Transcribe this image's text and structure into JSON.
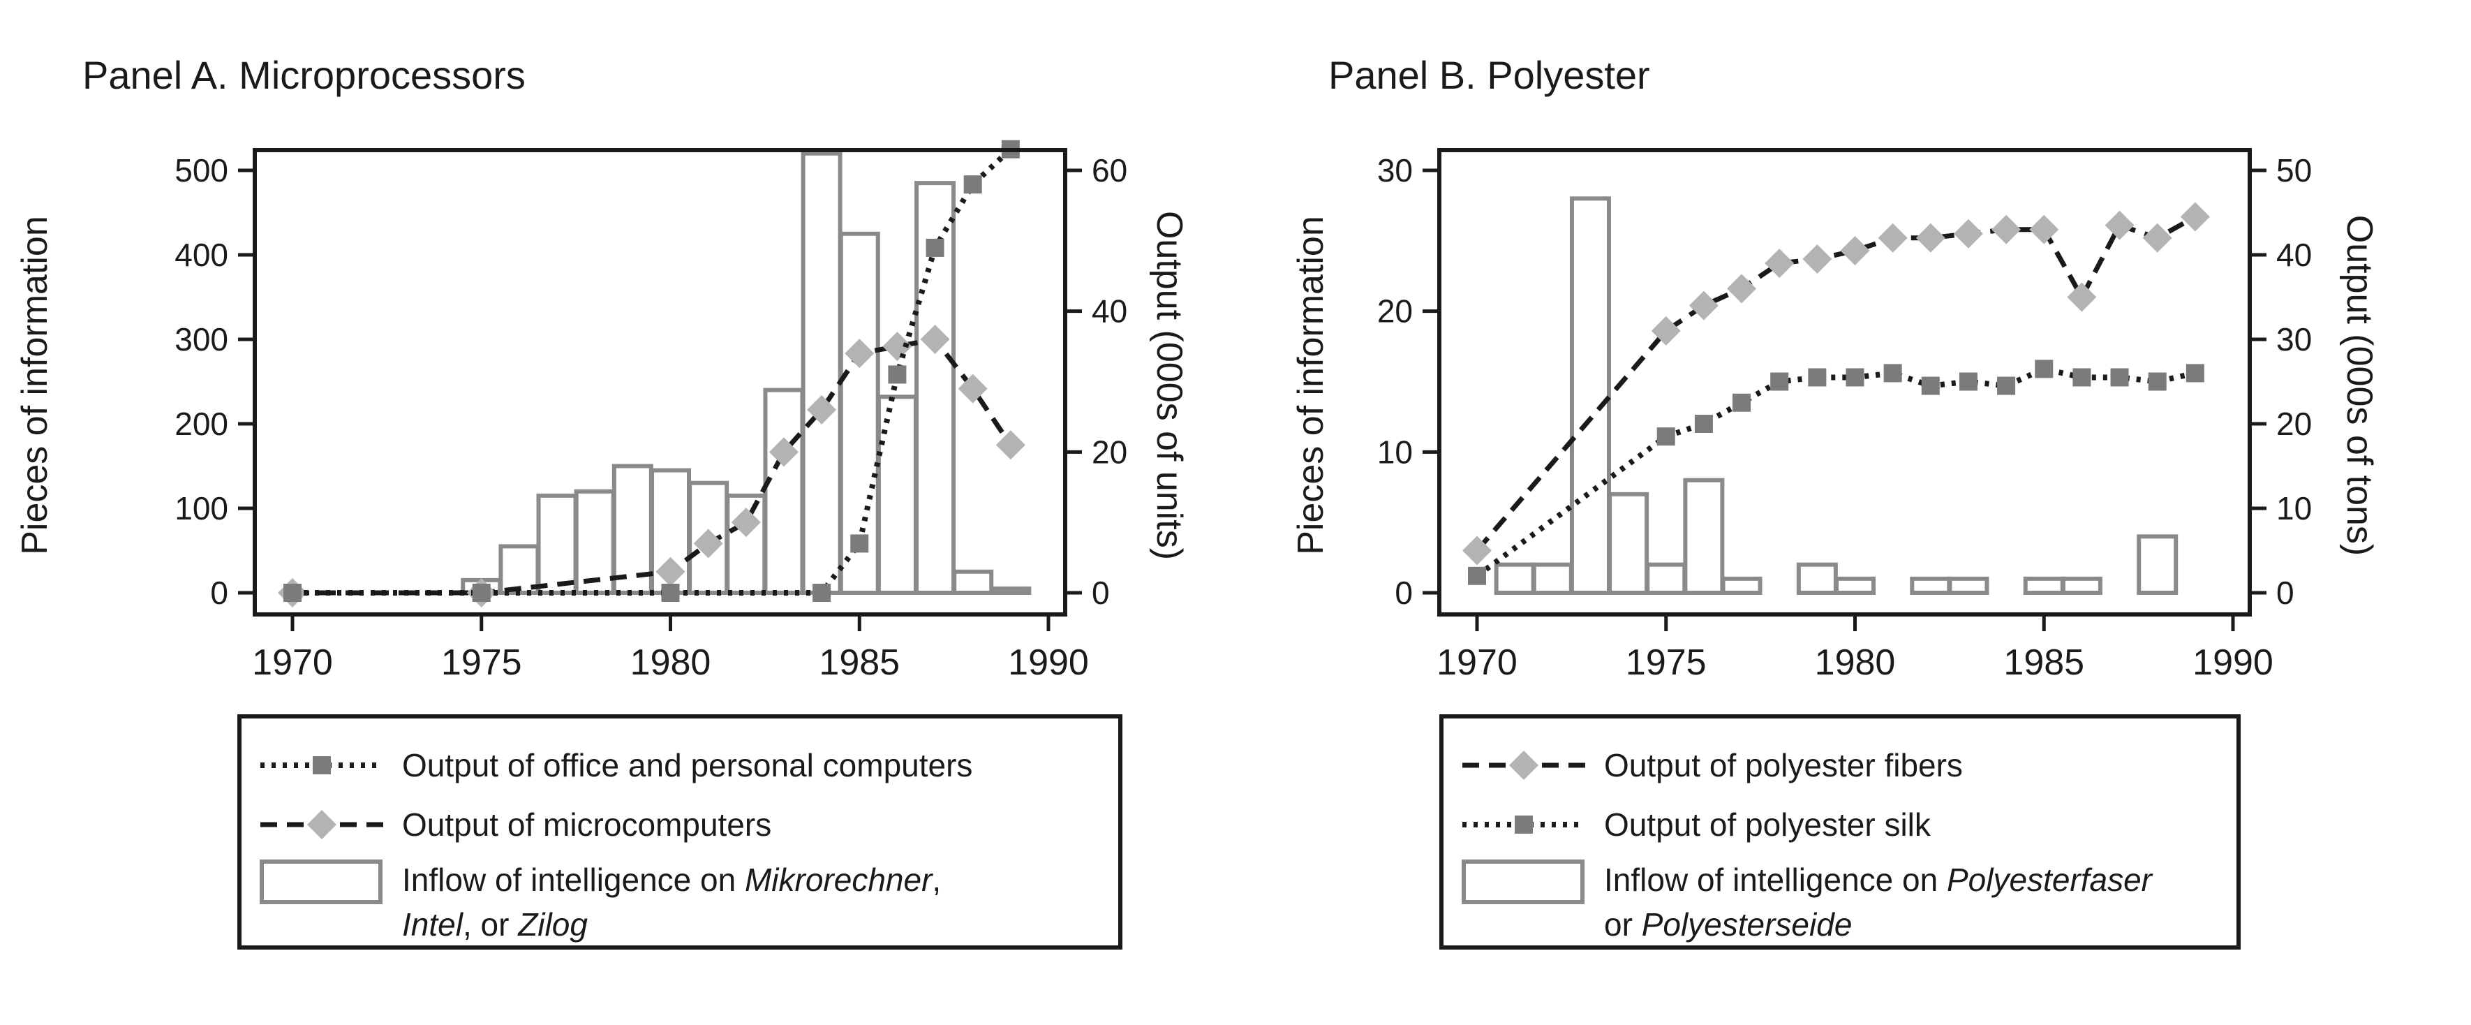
{
  "figure": {
    "background": "#ffffff"
  },
  "colors": {
    "ink": "#1a1a1a",
    "bar_outline": "#8a8a8a",
    "bar_fill": "#ffffff",
    "diamond_fill": "#b3b3b3",
    "square_fill": "#7b7b7b"
  },
  "chart_data": [
    {
      "type": "bar+line",
      "panel": "A",
      "title": "Panel A. Microprocessors",
      "ylabel_left": "Pieces of information",
      "ylabel_right": "Output (000s of units)",
      "x_ticks": [
        1970,
        1975,
        1980,
        1985,
        1990
      ],
      "x_range_years": [
        1970,
        1989
      ],
      "yticks_left": [
        0,
        100,
        200,
        300,
        400,
        500
      ],
      "yticks_right": [
        0,
        20,
        40,
        60
      ],
      "ylim_left": [
        0,
        550
      ],
      "ylim_right": [
        0,
        66
      ],
      "grid": false,
      "legend_position": "bottom",
      "bars": {
        "name": "Inflow of intelligence on Mikrorechner, Intel, or Zilog",
        "axis": "left",
        "years": [
          1975,
          1976,
          1977,
          1978,
          1979,
          1980,
          1981,
          1982,
          1983,
          1984,
          1985,
          1986,
          1987,
          1988,
          1989
        ],
        "values": [
          15,
          55,
          115,
          120,
          150,
          145,
          130,
          115,
          240,
          520,
          425,
          232,
          485,
          25,
          5
        ]
      },
      "series": [
        {
          "name": "Output of office and personal computers",
          "axis": "right",
          "line": "dotted",
          "marker": "square",
          "x": [
            1970,
            1975,
            1980,
            1984,
            1985,
            1986,
            1987,
            1988,
            1989
          ],
          "y": [
            0,
            0,
            0,
            0,
            7,
            31,
            49,
            58,
            63
          ]
        },
        {
          "name": "Output of microcomputers",
          "axis": "right",
          "line": "dashed",
          "marker": "diamond",
          "x": [
            1970,
            1975,
            1980,
            1981,
            1982,
            1983,
            1984,
            1985,
            1986,
            1987,
            1988,
            1989
          ],
          "y": [
            0,
            0,
            3,
            7,
            10,
            20,
            26,
            34,
            35,
            36,
            29,
            21
          ]
        }
      ]
    },
    {
      "type": "bar+line",
      "panel": "B",
      "title": "Panel B. Polyester",
      "ylabel_left": "Pieces of information",
      "ylabel_right": "Output (000s of tons)",
      "x_ticks": [
        1970,
        1975,
        1980,
        1985,
        1990
      ],
      "x_range_years": [
        1970,
        1989
      ],
      "yticks_left": [
        0,
        10,
        20,
        30
      ],
      "yticks_right": [
        0,
        10,
        20,
        30,
        40,
        50
      ],
      "ylim_left": [
        0,
        31.5
      ],
      "ylim_right": [
        0,
        52.5
      ],
      "grid": false,
      "legend_position": "bottom",
      "bars": {
        "name": "Inflow of intelligence on Polyesterfaser or Polyesterseide",
        "axis": "left",
        "years": [
          1971,
          1972,
          1973,
          1974,
          1975,
          1976,
          1977,
          1979,
          1980,
          1982,
          1983,
          1985,
          1986,
          1988
        ],
        "values": [
          2,
          2,
          28,
          7,
          2,
          8,
          1,
          2,
          1,
          1,
          1,
          1,
          1,
          4
        ]
      },
      "series": [
        {
          "name": "Output of polyester fibers",
          "axis": "right",
          "line": "dashed",
          "marker": "diamond",
          "x": [
            1970,
            1975,
            1976,
            1977,
            1978,
            1979,
            1980,
            1981,
            1982,
            1983,
            1984,
            1985,
            1986,
            1987,
            1988,
            1989
          ],
          "y": [
            5,
            31,
            34,
            36,
            39,
            39.5,
            40.5,
            42,
            42,
            42.5,
            43,
            43,
            35,
            43.5,
            42,
            44.5
          ]
        },
        {
          "name": "Output of polyester silk",
          "axis": "right",
          "line": "dotted",
          "marker": "square",
          "x": [
            1970,
            1975,
            1976,
            1977,
            1978,
            1979,
            1980,
            1981,
            1982,
            1983,
            1984,
            1985,
            1986,
            1987,
            1988,
            1989
          ],
          "y": [
            2,
            18.5,
            20,
            22.5,
            25,
            25.5,
            25.5,
            26,
            24.5,
            25,
            24.5,
            26.5,
            25.5,
            25.5,
            25,
            26
          ]
        }
      ]
    }
  ],
  "legend_a": {
    "item3_line1_pre": "Inflow of intelligence on ",
    "item3_line1_italic": "Mikrorechner",
    "item3_line1_post": ",",
    "item3_line2_italic1": "Intel",
    "item3_line2_mid": ", or ",
    "item3_line2_italic2": "Zilog"
  },
  "legend_b": {
    "item3_line1_pre": "Inflow of intelligence on ",
    "item3_line1_italic": "Polyesterfaser",
    "item3_line2_pre": "or ",
    "item3_line2_italic": "Polyesterseide"
  }
}
